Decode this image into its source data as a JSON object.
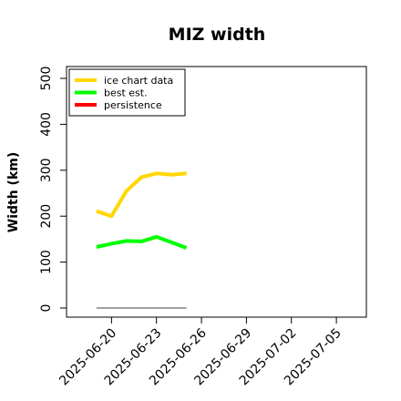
{
  "chart_data": {
    "type": "line",
    "title": "MIZ width",
    "xlabel": "",
    "ylabel": "Width (km)",
    "ylim": [
      0,
      500
    ],
    "xlim": [
      "2025-06-17",
      "2025-07-07"
    ],
    "y_ticks": [
      0,
      100,
      200,
      300,
      400,
      500
    ],
    "x_ticks": [
      "2025-06-20",
      "2025-06-23",
      "2025-06-26",
      "2025-06-29",
      "2025-07-02",
      "2025-07-05"
    ],
    "grid": false,
    "legend_position": "top-left",
    "series": [
      {
        "name": "ice chart data",
        "color": "#FFD700",
        "x": [
          "2025-06-19",
          "2025-06-20",
          "2025-06-21",
          "2025-06-22",
          "2025-06-23",
          "2025-06-24",
          "2025-06-25"
        ],
        "y": [
          211,
          200,
          255,
          285,
          293,
          290,
          293
        ]
      },
      {
        "name": "best est.",
        "color": "#00FF00",
        "x": [
          "2025-06-19",
          "2025-06-20",
          "2025-06-21",
          "2025-06-22",
          "2025-06-23",
          "2025-06-24",
          "2025-06-25"
        ],
        "y": [
          133,
          140,
          146,
          145,
          155,
          143,
          131
        ]
      },
      {
        "name": "persistence",
        "color": "#FF0000",
        "x": [],
        "y": []
      },
      {
        "color": "#808080",
        "x": [
          "2025-06-19",
          "2025-06-25"
        ],
        "y": [
          0,
          0
        ]
      }
    ]
  }
}
